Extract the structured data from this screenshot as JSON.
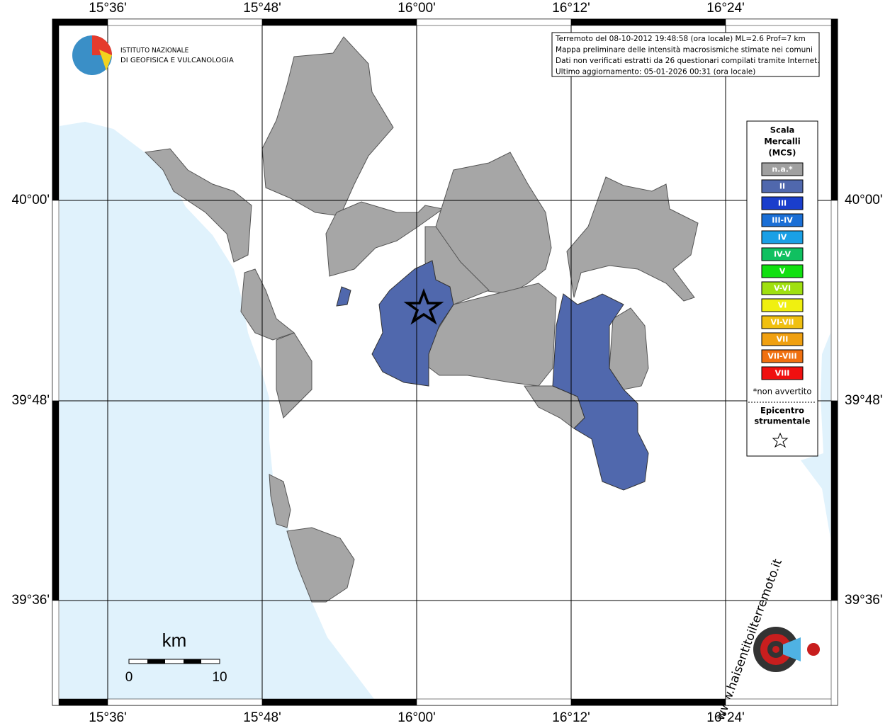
{
  "map": {
    "lon_labels": [
      "15°36'",
      "15°48'",
      "16°00'",
      "16°12'",
      "16°24'"
    ],
    "lat_labels": [
      "40°00'",
      "39°48'",
      "39°36'"
    ]
  },
  "logo": {
    "line1": "ISTITUTO NAZIONALE",
    "line2": "DI GEOFISICA E VULCANOLOGIA"
  },
  "info": [
    "Terremoto del 08-10-2012 19:48:58 (ora locale) ML=2.6 Prof=7 km",
    "Mappa preliminare delle intensità macrosismiche stimate nei comuni",
    "Dati non verificati estratti da 26 questionari compilati tramite Internet.",
    "Ultimo aggiornamento: 05-01-2026 00:31 (ora locale)"
  ],
  "legend": {
    "title": [
      "Scala",
      "Mercalli",
      "(MCS)"
    ],
    "classes": [
      {
        "label": "n.a.*",
        "color": "#a0a0a0"
      },
      {
        "label": "II",
        "color": "#5068ad"
      },
      {
        "label": "III",
        "color": "#1a3ecc"
      },
      {
        "label": "III-IV",
        "color": "#1a6fd6"
      },
      {
        "label": "IV",
        "color": "#1aa0e6"
      },
      {
        "label": "IV-V",
        "color": "#10c060"
      },
      {
        "label": "V",
        "color": "#10e010"
      },
      {
        "label": "V-VI",
        "color": "#a0e010"
      },
      {
        "label": "VI",
        "color": "#f0f010"
      },
      {
        "label": "VI-VII",
        "color": "#f0c010"
      },
      {
        "label": "VII",
        "color": "#f0a010"
      },
      {
        "label": "VII-VIII",
        "color": "#f07010"
      },
      {
        "label": "VIII",
        "color": "#f01010"
      }
    ],
    "note": "*non avvertito",
    "epicenter": [
      "Epicentro",
      "strumentale"
    ]
  },
  "scale_bar": {
    "unit": "km",
    "labels": [
      "0",
      "10"
    ]
  },
  "badge": "www.haisentitoilterremoto.it"
}
